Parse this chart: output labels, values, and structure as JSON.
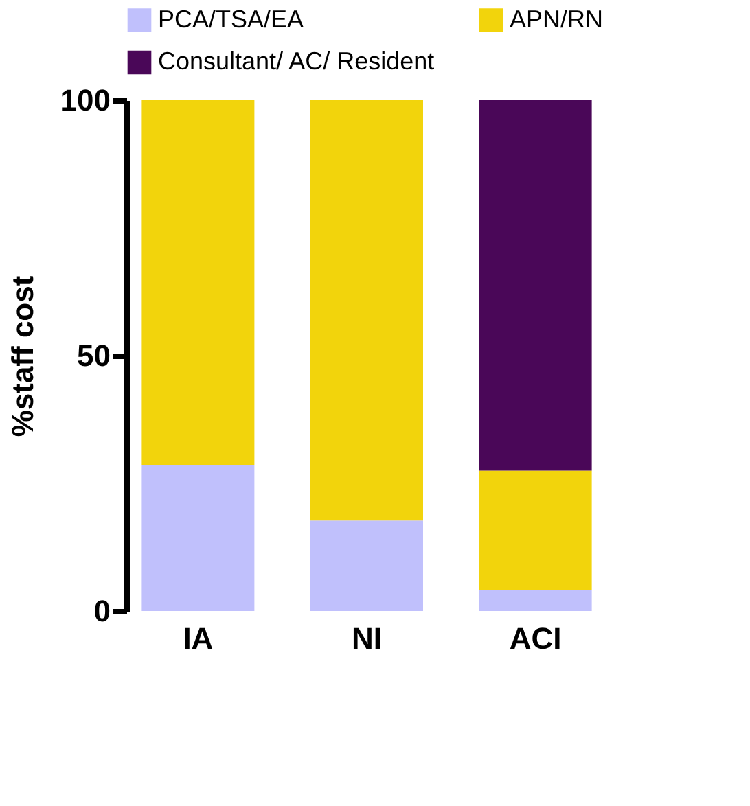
{
  "chart_data": {
    "type": "bar",
    "stacked": true,
    "ylabel": "%staff cost",
    "categories": [
      "IA",
      "NI",
      "ACI"
    ],
    "series": [
      {
        "name": "PCA/TSA/EA",
        "color": "#c0c0fc",
        "values": [
          28.5,
          17.7,
          4.1
        ]
      },
      {
        "name": "APN/RN",
        "color": "#f2d40c",
        "values": [
          71.5,
          82.3,
          23.4
        ]
      },
      {
        "name": "Consultant/ AC/ Resident",
        "color": "#4a0758",
        "values": [
          0,
          0,
          72.5
        ]
      }
    ],
    "ylim": [
      0,
      100
    ],
    "yticks": [
      0,
      50,
      100
    ],
    "grid": false,
    "legend": "top"
  }
}
